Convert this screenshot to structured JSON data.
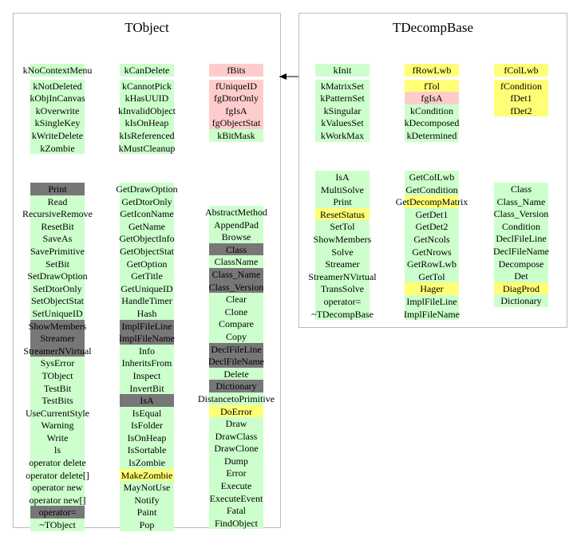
{
  "colors": {
    "green": "#ccffcc",
    "pink": "#ffcccc",
    "yellow": "#ffff77",
    "gray": "#777777"
  },
  "tobject": {
    "title": "TObject",
    "data_cols": [
      [
        {
          "label": "kNoContextMenu",
          "c": "g"
        },
        {
          "label": "kNotDeleted",
          "c": "g",
          "gap": true
        },
        {
          "label": "kObjInCanvas",
          "c": "g"
        },
        {
          "label": "kOverwrite",
          "c": "g"
        },
        {
          "label": "kSingleKey",
          "c": "g"
        },
        {
          "label": "kWriteDelete",
          "c": "g"
        },
        {
          "label": "kZombie",
          "c": "g"
        }
      ],
      [
        {
          "label": "kCanDelete",
          "c": "g"
        },
        {
          "label": "kCannotPick",
          "c": "g",
          "gap": true
        },
        {
          "label": "kHasUUID",
          "c": "g"
        },
        {
          "label": "kInvalidObject",
          "c": "g"
        },
        {
          "label": "kIsOnHeap",
          "c": "g"
        },
        {
          "label": "kIsReferenced",
          "c": "g"
        },
        {
          "label": "kMustCleanup",
          "c": "g"
        }
      ],
      [
        {
          "label": "fBits",
          "c": "p"
        },
        {
          "label": "fUniqueID",
          "c": "p",
          "gap": true
        },
        {
          "label": "fgDtorOnly",
          "c": "p"
        },
        {
          "label": "fgIsA",
          "c": "p"
        },
        {
          "label": "fgObjectStat",
          "c": "p"
        },
        {
          "label": "kBitMask",
          "c": "g"
        }
      ]
    ],
    "method_cols": [
      [
        {
          "label": "Print",
          "c": "d"
        },
        {
          "label": "Read",
          "c": "g"
        },
        {
          "label": "RecursiveRemove",
          "c": "g"
        },
        {
          "label": "ResetBit",
          "c": "g"
        },
        {
          "label": "SaveAs",
          "c": "g"
        },
        {
          "label": "SavePrimitive",
          "c": "g"
        },
        {
          "label": "SetBit",
          "c": "g"
        },
        {
          "label": "SetDrawOption",
          "c": "g"
        },
        {
          "label": "SetDtorOnly",
          "c": "g"
        },
        {
          "label": "SetObjectStat",
          "c": "g"
        },
        {
          "label": "SetUniqueID",
          "c": "g"
        },
        {
          "label": "ShowMembers",
          "c": "d"
        },
        {
          "label": "Streamer",
          "c": "d"
        },
        {
          "label": "StreamerNVirtual",
          "c": "d"
        },
        {
          "label": "SysError",
          "c": "g"
        },
        {
          "label": "TObject",
          "c": "g"
        },
        {
          "label": "TestBit",
          "c": "g"
        },
        {
          "label": "TestBits",
          "c": "g"
        },
        {
          "label": "UseCurrentStyle",
          "c": "g"
        },
        {
          "label": "Warning",
          "c": "g"
        },
        {
          "label": "Write",
          "c": "g"
        },
        {
          "label": "ls",
          "c": "g"
        },
        {
          "label": "operator delete",
          "c": "g"
        },
        {
          "label": "operator delete[]",
          "c": "g"
        },
        {
          "label": "operator new",
          "c": "g"
        },
        {
          "label": "operator new[]",
          "c": "g"
        },
        {
          "label": "operator=",
          "c": "d"
        },
        {
          "label": "~TObject",
          "c": "g"
        }
      ],
      [
        {
          "label": "GetDrawOption",
          "c": "g"
        },
        {
          "label": "GetDtorOnly",
          "c": "g"
        },
        {
          "label": "GetIconName",
          "c": "g"
        },
        {
          "label": "GetName",
          "c": "g"
        },
        {
          "label": "GetObjectInfo",
          "c": "g"
        },
        {
          "label": "GetObjectStat",
          "c": "g"
        },
        {
          "label": "GetOption",
          "c": "g"
        },
        {
          "label": "GetTitle",
          "c": "g"
        },
        {
          "label": "GetUniqueID",
          "c": "g"
        },
        {
          "label": "HandleTimer",
          "c": "g"
        },
        {
          "label": "Hash",
          "c": "g"
        },
        {
          "label": "ImplFileLine",
          "c": "d"
        },
        {
          "label": "ImplFileName",
          "c": "d"
        },
        {
          "label": "Info",
          "c": "g"
        },
        {
          "label": "InheritsFrom",
          "c": "g"
        },
        {
          "label": "Inspect",
          "c": "g"
        },
        {
          "label": "InvertBit",
          "c": "g"
        },
        {
          "label": "IsA",
          "c": "d"
        },
        {
          "label": "IsEqual",
          "c": "g"
        },
        {
          "label": "IsFolder",
          "c": "g"
        },
        {
          "label": "IsOnHeap",
          "c": "g"
        },
        {
          "label": "IsSortable",
          "c": "g"
        },
        {
          "label": "IsZombie",
          "c": "g"
        },
        {
          "label": "MakeZombie",
          "c": "y"
        },
        {
          "label": "MayNotUse",
          "c": "g"
        },
        {
          "label": "Notify",
          "c": "g"
        },
        {
          "label": "Paint",
          "c": "g"
        },
        {
          "label": "Pop",
          "c": "g"
        }
      ],
      [
        {
          "label": "AbstractMethod",
          "c": "g"
        },
        {
          "label": "AppendPad",
          "c": "g"
        },
        {
          "label": "Browse",
          "c": "g"
        },
        {
          "label": "Class",
          "c": "d"
        },
        {
          "label": "ClassName",
          "c": "g"
        },
        {
          "label": "Class_Name",
          "c": "d"
        },
        {
          "label": "Class_Version",
          "c": "d"
        },
        {
          "label": "Clear",
          "c": "g"
        },
        {
          "label": "Clone",
          "c": "g"
        },
        {
          "label": "Compare",
          "c": "g"
        },
        {
          "label": "Copy",
          "c": "g"
        },
        {
          "label": "DeclFileLine",
          "c": "d"
        },
        {
          "label": "DeclFileName",
          "c": "d"
        },
        {
          "label": "Delete",
          "c": "g"
        },
        {
          "label": "Dictionary",
          "c": "d"
        },
        {
          "label": "DistancetoPrimitive",
          "c": "g"
        },
        {
          "label": "DoError",
          "c": "y"
        },
        {
          "label": "Draw",
          "c": "g"
        },
        {
          "label": "DrawClass",
          "c": "g"
        },
        {
          "label": "DrawClone",
          "c": "g"
        },
        {
          "label": "Dump",
          "c": "g"
        },
        {
          "label": "Error",
          "c": "g"
        },
        {
          "label": "Execute",
          "c": "g"
        },
        {
          "label": "ExecuteEvent",
          "c": "g"
        },
        {
          "label": "Fatal",
          "c": "g"
        },
        {
          "label": "FindObject",
          "c": "g"
        }
      ]
    ]
  },
  "tdecompbase": {
    "title": "TDecompBase",
    "data_cols": [
      [
        {
          "label": "kInit",
          "c": "g"
        },
        {
          "label": "kMatrixSet",
          "c": "g",
          "gap": true
        },
        {
          "label": "kPatternSet",
          "c": "g"
        },
        {
          "label": "kSingular",
          "c": "g"
        },
        {
          "label": "kValuesSet",
          "c": "g"
        },
        {
          "label": "kWorkMax",
          "c": "g"
        }
      ],
      [
        {
          "label": "fRowLwb",
          "c": "y"
        },
        {
          "label": "fTol",
          "c": "y",
          "gap": true
        },
        {
          "label": "fgIsA",
          "c": "p"
        },
        {
          "label": "kCondition",
          "c": "g"
        },
        {
          "label": "kDecomposed",
          "c": "g"
        },
        {
          "label": "kDetermined",
          "c": "g"
        }
      ],
      [
        {
          "label": "fColLwb",
          "c": "y"
        },
        {
          "label": "fCondition",
          "c": "y",
          "gap": true
        },
        {
          "label": "fDet1",
          "c": "y"
        },
        {
          "label": "fDet2",
          "c": "y"
        }
      ]
    ],
    "method_cols": [
      [
        {
          "label": "IsA",
          "c": "g"
        },
        {
          "label": "MultiSolve",
          "c": "g"
        },
        {
          "label": "Print",
          "c": "g"
        },
        {
          "label": "ResetStatus",
          "c": "y"
        },
        {
          "label": "SetTol",
          "c": "g"
        },
        {
          "label": "ShowMembers",
          "c": "g"
        },
        {
          "label": "Solve",
          "c": "g"
        },
        {
          "label": "Streamer",
          "c": "g"
        },
        {
          "label": "StreamerNVirtual",
          "c": "g"
        },
        {
          "label": "TransSolve",
          "c": "g"
        },
        {
          "label": "operator=",
          "c": "g"
        },
        {
          "label": "~TDecompBase",
          "c": "g"
        }
      ],
      [
        {
          "label": "GetColLwb",
          "c": "g"
        },
        {
          "label": "GetCondition",
          "c": "g"
        },
        {
          "label": "GetDecompMatrix",
          "c": "y"
        },
        {
          "label": "GetDet1",
          "c": "g"
        },
        {
          "label": "GetDet2",
          "c": "g"
        },
        {
          "label": "GetNcols",
          "c": "g"
        },
        {
          "label": "GetNrows",
          "c": "g"
        },
        {
          "label": "GetRowLwb",
          "c": "g"
        },
        {
          "label": "GetTol",
          "c": "g"
        },
        {
          "label": "Hager",
          "c": "y"
        },
        {
          "label": "ImplFileLine",
          "c": "g"
        },
        {
          "label": "ImplFileName",
          "c": "g"
        }
      ],
      [
        {
          "label": "Class",
          "c": "g"
        },
        {
          "label": "Class_Name",
          "c": "g"
        },
        {
          "label": "Class_Version",
          "c": "g"
        },
        {
          "label": "Condition",
          "c": "g"
        },
        {
          "label": "DeclFileLine",
          "c": "g"
        },
        {
          "label": "DeclFileName",
          "c": "g"
        },
        {
          "label": "Decompose",
          "c": "g"
        },
        {
          "label": "Det",
          "c": "g"
        },
        {
          "label": "DiagProd",
          "c": "y"
        },
        {
          "label": "Dictionary",
          "c": "g"
        }
      ]
    ]
  }
}
